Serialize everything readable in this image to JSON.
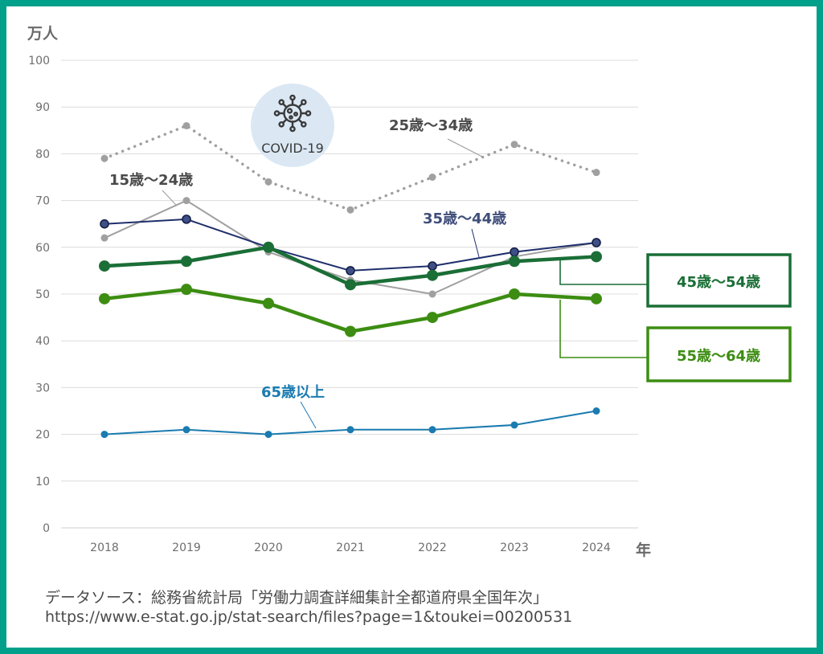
{
  "chart_data": {
    "type": "line",
    "ylabel": "万人",
    "xlabel": "年",
    "ylim": [
      0,
      100
    ],
    "yticks": [
      0,
      10,
      20,
      30,
      40,
      50,
      60,
      70,
      80,
      90,
      100
    ],
    "categories": [
      "2018",
      "2019",
      "2020",
      "2021",
      "2022",
      "2023",
      "2024"
    ],
    "grid": true,
    "series": [
      {
        "name": "15歳～24歳",
        "values": [
          62,
          70,
          59,
          53,
          50,
          58,
          61
        ],
        "color": "#a0a0a0",
        "style": "solid-thin"
      },
      {
        "name": "25歳～34歳",
        "values": [
          79,
          86,
          74,
          68,
          75,
          82,
          76
        ],
        "color": "#a0a0a0",
        "style": "dotted"
      },
      {
        "name": "35歳～44歳",
        "values": [
          65,
          66,
          60,
          55,
          56,
          59,
          61
        ],
        "color": "#1f2f6b",
        "style": "solid-thin"
      },
      {
        "name": "45歳～54歳",
        "values": [
          56,
          57,
          60,
          52,
          54,
          57,
          58
        ],
        "color": "#1a6e36",
        "style": "solid-thick",
        "boxed": true
      },
      {
        "name": "55歳～64歳",
        "values": [
          49,
          51,
          48,
          42,
          45,
          50,
          49
        ],
        "color": "#3c8d12",
        "style": "solid-thick",
        "boxed": true
      },
      {
        "name": "65歳以上",
        "values": [
          20,
          21,
          20,
          21,
          21,
          22,
          25
        ],
        "color": "#1a7bb0",
        "style": "solid-thin"
      }
    ],
    "annotation": {
      "text": "COVID-19",
      "icon": "virus-icon"
    }
  },
  "source": {
    "line1": "データソース：総務省統計局「労働力調査詳細集計全都道府県全国年次」",
    "line2": "https://www.e-stat.go.jp/stat-search/files?page=1&toukei=00200531"
  }
}
